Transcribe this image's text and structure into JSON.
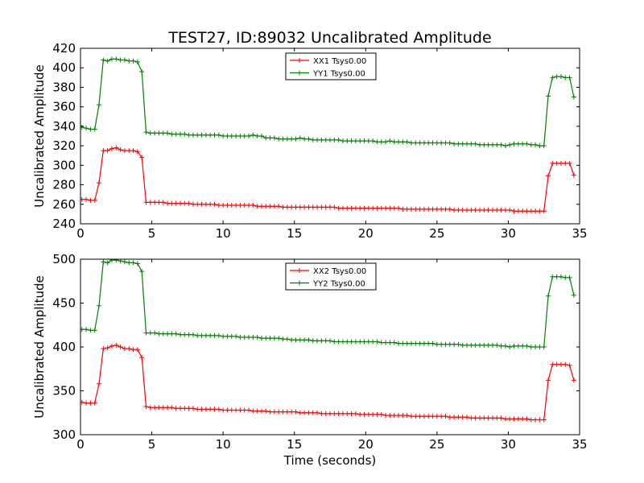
{
  "figure": {
    "title": "TEST27, ID:89032 Uncalibrated Amplitude"
  },
  "chart_data": [
    {
      "type": "line",
      "title": "TEST27, ID:89032 Uncalibrated Amplitude",
      "xlabel": "",
      "ylabel": "Uncalibrated Amplitude",
      "xlim": [
        0,
        35
      ],
      "ylim": [
        240,
        420
      ],
      "xticks": [
        "0",
        "5",
        "10",
        "15",
        "20",
        "25",
        "30",
        "35"
      ],
      "yticks": [
        "240",
        "260",
        "280",
        "300",
        "320",
        "340",
        "360",
        "380",
        "400",
        "420"
      ],
      "grid": false,
      "legend_position": "upper-center",
      "series": [
        {
          "name": "XX1 Tsys0.00",
          "color": "#ff0000",
          "marker": "plus",
          "x": [
            0.1,
            0.4,
            0.7,
            1.0,
            1.3,
            1.6,
            1.9,
            2.2,
            2.5,
            2.8,
            3.1,
            3.4,
            3.7,
            4.0,
            4.3,
            4.6,
            4.9,
            5.2,
            5.5,
            5.8,
            6.1,
            6.4,
            6.7,
            7.0,
            7.3,
            7.6,
            7.9,
            8.2,
            8.5,
            8.8,
            9.1,
            9.4,
            9.7,
            10.0,
            10.3,
            10.6,
            10.9,
            11.2,
            11.5,
            11.8,
            12.1,
            12.4,
            12.7,
            13.0,
            13.3,
            13.6,
            13.9,
            14.2,
            14.5,
            14.8,
            15.1,
            15.4,
            15.7,
            16.0,
            16.3,
            16.6,
            16.9,
            17.2,
            17.5,
            17.8,
            18.1,
            18.4,
            18.7,
            19.0,
            19.3,
            19.6,
            19.9,
            20.2,
            20.5,
            20.8,
            21.1,
            21.4,
            21.7,
            22.0,
            22.3,
            22.6,
            22.9,
            23.2,
            23.5,
            23.8,
            24.1,
            24.4,
            24.7,
            25.0,
            25.3,
            25.6,
            25.9,
            26.2,
            26.5,
            26.8,
            27.1,
            27.4,
            27.7,
            28.0,
            28.3,
            28.6,
            28.9,
            29.2,
            29.5,
            29.8,
            30.1,
            30.4,
            30.7,
            31.0,
            31.3,
            31.6,
            31.9,
            32.2,
            32.5,
            32.8,
            33.1,
            33.4,
            33.7,
            34.0,
            34.3,
            34.6
          ],
          "y": [
            265,
            265,
            264,
            264,
            282,
            315,
            315,
            317,
            318,
            316,
            315,
            315,
            315,
            314,
            308,
            262,
            262,
            262,
            262,
            262,
            261,
            261,
            261,
            261,
            261,
            261,
            260,
            260,
            260,
            260,
            260,
            260,
            259,
            259,
            259,
            259,
            259,
            259,
            259,
            259,
            259,
            258,
            258,
            258,
            258,
            258,
            258,
            257,
            257,
            257,
            257,
            257,
            257,
            257,
            257,
            257,
            257,
            257,
            257,
            257,
            256,
            256,
            256,
            256,
            256,
            256,
            256,
            256,
            256,
            256,
            256,
            256,
            256,
            256,
            256,
            255,
            255,
            255,
            255,
            255,
            255,
            255,
            255,
            255,
            255,
            255,
            255,
            254,
            254,
            254,
            254,
            254,
            254,
            254,
            254,
            254,
            254,
            254,
            254,
            254,
            254,
            253,
            253,
            253,
            253,
            253,
            253,
            253,
            253,
            289,
            302,
            302,
            302,
            302,
            302,
            290
          ]
        },
        {
          "name": "YY1 Tsys0.00",
          "color": "#008000",
          "marker": "plus",
          "x": [
            0.1,
            0.4,
            0.7,
            1.0,
            1.3,
            1.6,
            1.9,
            2.2,
            2.5,
            2.8,
            3.1,
            3.4,
            3.7,
            4.0,
            4.3,
            4.6,
            4.9,
            5.2,
            5.5,
            5.8,
            6.1,
            6.4,
            6.7,
            7.0,
            7.3,
            7.6,
            7.9,
            8.2,
            8.5,
            8.8,
            9.1,
            9.4,
            9.7,
            10.0,
            10.3,
            10.6,
            10.9,
            11.2,
            11.5,
            11.8,
            12.1,
            12.4,
            12.7,
            13.0,
            13.3,
            13.6,
            13.9,
            14.2,
            14.5,
            14.8,
            15.1,
            15.4,
            15.7,
            16.0,
            16.3,
            16.6,
            16.9,
            17.2,
            17.5,
            17.8,
            18.1,
            18.4,
            18.7,
            19.0,
            19.3,
            19.6,
            19.9,
            20.2,
            20.5,
            20.8,
            21.1,
            21.4,
            21.7,
            22.0,
            22.3,
            22.6,
            22.9,
            23.2,
            23.5,
            23.8,
            24.1,
            24.4,
            24.7,
            25.0,
            25.3,
            25.6,
            25.9,
            26.2,
            26.5,
            26.8,
            27.1,
            27.4,
            27.7,
            28.0,
            28.3,
            28.6,
            28.9,
            29.2,
            29.5,
            29.8,
            30.1,
            30.4,
            30.7,
            31.0,
            31.3,
            31.6,
            31.9,
            32.2,
            32.5,
            32.8,
            33.1,
            33.4,
            33.7,
            34.0,
            34.3,
            34.6
          ],
          "y": [
            339,
            338,
            337,
            337,
            362,
            408,
            407,
            409,
            409,
            408,
            408,
            407,
            407,
            406,
            396,
            334,
            333,
            333,
            333,
            333,
            333,
            332,
            332,
            332,
            332,
            331,
            331,
            331,
            331,
            331,
            331,
            331,
            331,
            330,
            330,
            330,
            330,
            330,
            330,
            330,
            331,
            330,
            330,
            328,
            328,
            328,
            327,
            327,
            327,
            327,
            327,
            328,
            327,
            327,
            326,
            326,
            326,
            326,
            326,
            326,
            326,
            325,
            325,
            325,
            325,
            325,
            325,
            325,
            325,
            324,
            324,
            324,
            325,
            324,
            324,
            324,
            324,
            323,
            323,
            323,
            323,
            323,
            323,
            323,
            323,
            323,
            323,
            322,
            322,
            322,
            322,
            322,
            322,
            321,
            321,
            321,
            321,
            321,
            321,
            320,
            321,
            322,
            322,
            322,
            322,
            321,
            321,
            320,
            320,
            371,
            390,
            391,
            391,
            390,
            390,
            370
          ]
        }
      ]
    },
    {
      "type": "line",
      "title": "",
      "xlabel": "Time (seconds)",
      "ylabel": "Uncalibrated Amplitude",
      "xlim": [
        0,
        35
      ],
      "ylim": [
        300,
        500
      ],
      "xticks": [
        "0",
        "5",
        "10",
        "15",
        "20",
        "25",
        "30",
        "35"
      ],
      "yticks": [
        "300",
        "350",
        "400",
        "450",
        "500"
      ],
      "grid": false,
      "legend_position": "upper-center",
      "series": [
        {
          "name": "XX2 Tsys0.00",
          "color": "#ff0000",
          "marker": "plus",
          "x": [
            0.1,
            0.4,
            0.7,
            1.0,
            1.3,
            1.6,
            1.9,
            2.2,
            2.5,
            2.8,
            3.1,
            3.4,
            3.7,
            4.0,
            4.3,
            4.6,
            4.9,
            5.2,
            5.5,
            5.8,
            6.1,
            6.4,
            6.7,
            7.0,
            7.3,
            7.6,
            7.9,
            8.2,
            8.5,
            8.8,
            9.1,
            9.4,
            9.7,
            10.0,
            10.3,
            10.6,
            10.9,
            11.2,
            11.5,
            11.8,
            12.1,
            12.4,
            12.7,
            13.0,
            13.3,
            13.6,
            13.9,
            14.2,
            14.5,
            14.8,
            15.1,
            15.4,
            15.7,
            16.0,
            16.3,
            16.6,
            16.9,
            17.2,
            17.5,
            17.8,
            18.1,
            18.4,
            18.7,
            19.0,
            19.3,
            19.6,
            19.9,
            20.2,
            20.5,
            20.8,
            21.1,
            21.4,
            21.7,
            22.0,
            22.3,
            22.6,
            22.9,
            23.2,
            23.5,
            23.8,
            24.1,
            24.4,
            24.7,
            25.0,
            25.3,
            25.6,
            25.9,
            26.2,
            26.5,
            26.8,
            27.1,
            27.4,
            27.7,
            28.0,
            28.3,
            28.6,
            28.9,
            29.2,
            29.5,
            29.8,
            30.1,
            30.4,
            30.7,
            31.0,
            31.3,
            31.6,
            31.9,
            32.2,
            32.5,
            32.8,
            33.1,
            33.4,
            33.7,
            34.0,
            34.3,
            34.6
          ],
          "y": [
            337,
            336,
            336,
            336,
            358,
            398,
            399,
            401,
            402,
            400,
            398,
            398,
            397,
            397,
            388,
            332,
            331,
            331,
            331,
            331,
            331,
            331,
            330,
            330,
            330,
            330,
            330,
            329,
            329,
            329,
            329,
            329,
            329,
            328,
            328,
            328,
            328,
            328,
            328,
            328,
            327,
            327,
            327,
            327,
            326,
            326,
            326,
            326,
            326,
            326,
            326,
            325,
            325,
            325,
            325,
            325,
            324,
            324,
            324,
            324,
            324,
            324,
            324,
            324,
            324,
            323,
            323,
            323,
            323,
            323,
            323,
            322,
            322,
            322,
            322,
            322,
            322,
            321,
            321,
            321,
            321,
            321,
            321,
            321,
            321,
            321,
            320,
            320,
            320,
            320,
            320,
            319,
            319,
            319,
            319,
            319,
            319,
            319,
            319,
            318,
            318,
            318,
            318,
            318,
            318,
            317,
            317,
            317,
            317,
            362,
            380,
            380,
            380,
            380,
            379,
            362
          ]
        },
        {
          "name": "YY2 Tsys0.00",
          "color": "#008000",
          "marker": "plus",
          "x": [
            0.1,
            0.4,
            0.7,
            1.0,
            1.3,
            1.6,
            1.9,
            2.2,
            2.5,
            2.8,
            3.1,
            3.4,
            3.7,
            4.0,
            4.3,
            4.6,
            4.9,
            5.2,
            5.5,
            5.8,
            6.1,
            6.4,
            6.7,
            7.0,
            7.3,
            7.6,
            7.9,
            8.2,
            8.5,
            8.8,
            9.1,
            9.4,
            9.7,
            10.0,
            10.3,
            10.6,
            10.9,
            11.2,
            11.5,
            11.8,
            12.1,
            12.4,
            12.7,
            13.0,
            13.3,
            13.6,
            13.9,
            14.2,
            14.5,
            14.8,
            15.1,
            15.4,
            15.7,
            16.0,
            16.3,
            16.6,
            16.9,
            17.2,
            17.5,
            17.8,
            18.1,
            18.4,
            18.7,
            19.0,
            19.3,
            19.6,
            19.9,
            20.2,
            20.5,
            20.8,
            21.1,
            21.4,
            21.7,
            22.0,
            22.3,
            22.6,
            22.9,
            23.2,
            23.5,
            23.8,
            24.1,
            24.4,
            24.7,
            25.0,
            25.3,
            25.6,
            25.9,
            26.2,
            26.5,
            26.8,
            27.1,
            27.4,
            27.7,
            28.0,
            28.3,
            28.6,
            28.9,
            29.2,
            29.5,
            29.8,
            30.1,
            30.4,
            30.7,
            31.0,
            31.3,
            31.6,
            31.9,
            32.2,
            32.5,
            32.8,
            33.1,
            33.4,
            33.7,
            34.0,
            34.3,
            34.6
          ],
          "y": [
            420,
            420,
            419,
            419,
            447,
            497,
            496,
            499,
            499,
            498,
            497,
            496,
            496,
            495,
            486,
            416,
            416,
            416,
            415,
            415,
            415,
            415,
            415,
            414,
            414,
            414,
            414,
            413,
            413,
            413,
            413,
            413,
            413,
            412,
            412,
            412,
            412,
            411,
            411,
            411,
            411,
            411,
            410,
            410,
            410,
            410,
            410,
            409,
            409,
            408,
            408,
            408,
            408,
            408,
            407,
            407,
            407,
            407,
            407,
            406,
            406,
            406,
            406,
            406,
            406,
            406,
            406,
            406,
            406,
            406,
            405,
            405,
            405,
            405,
            404,
            404,
            404,
            404,
            404,
            404,
            404,
            404,
            404,
            403,
            403,
            403,
            403,
            403,
            403,
            402,
            402,
            402,
            402,
            402,
            402,
            402,
            402,
            402,
            401,
            401,
            400,
            401,
            401,
            401,
            401,
            400,
            400,
            400,
            400,
            458,
            480,
            480,
            480,
            479,
            479,
            459
          ]
        }
      ]
    }
  ]
}
